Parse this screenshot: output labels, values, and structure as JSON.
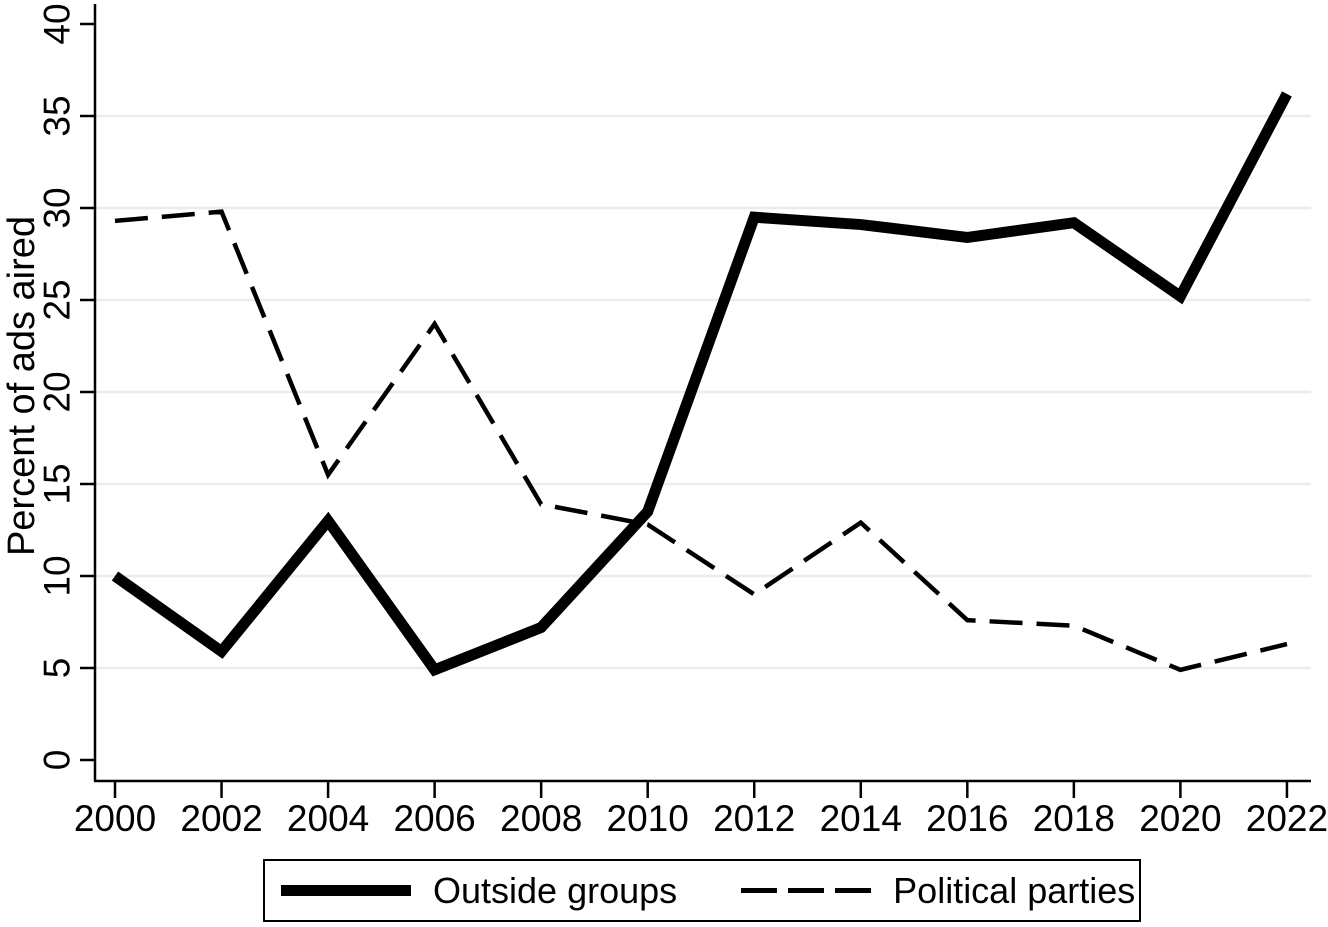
{
  "chart_data": {
    "type": "line",
    "title": "",
    "ylabel": "Percent of ads aired",
    "xlabel": "",
    "ylim": [
      0,
      40
    ],
    "yticks": [
      0,
      5,
      10,
      15,
      20,
      25,
      30,
      35,
      40
    ],
    "gridlines_at": [
      5,
      10,
      15,
      20,
      25,
      30,
      35
    ],
    "grid": true,
    "legend_position": "bottom",
    "x": [
      2000,
      2002,
      2004,
      2006,
      2008,
      2010,
      2012,
      2014,
      2016,
      2018,
      2020,
      2022
    ],
    "series": [
      {
        "name": "Outside groups",
        "style": "solid",
        "color": "#000000",
        "values": [
          10.0,
          5.9,
          13.0,
          4.9,
          7.2,
          13.5,
          29.5,
          29.1,
          28.4,
          29.2,
          25.2,
          36.2
        ]
      },
      {
        "name": "Political parties",
        "style": "dashed",
        "color": "#000000",
        "values": [
          29.3,
          29.8,
          15.5,
          23.7,
          13.9,
          12.8,
          9.0,
          12.9,
          7.6,
          7.3,
          4.9,
          6.3
        ]
      }
    ],
    "colors": {
      "line": "#000000",
      "gridline": "#ececec",
      "background": "#ffffff"
    }
  }
}
